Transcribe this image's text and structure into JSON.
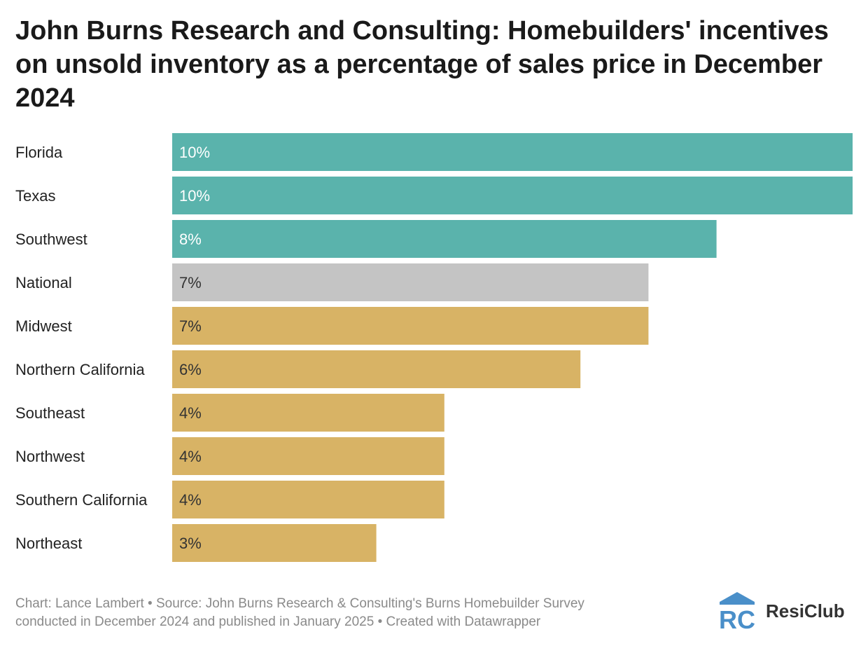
{
  "title": "John Burns Research and Consulting: Homebuilders' incentives on unsold inventory as a percentage of sales price in December 2024",
  "footer": {
    "line1": "Chart: Lance Lambert • Source: John Burns Research & Consulting's Burns Homebuilder Survey",
    "line2": "conducted in December 2024 and published in January 2025 • Created with Datawrapper"
  },
  "brand": {
    "name": "ResiClub",
    "mark": "RC"
  },
  "colors": {
    "teal": "#5ab3ac",
    "gray": "#c4c4c4",
    "gold": "#d8b365",
    "brand_blue": "#4a8fc9"
  },
  "chart_data": {
    "type": "bar",
    "orientation": "horizontal",
    "categories": [
      "Florida",
      "Texas",
      "Southwest",
      "National",
      "Midwest",
      "Northern California",
      "Southeast",
      "Northwest",
      "Southern California",
      "Northeast"
    ],
    "values": [
      10,
      10,
      8,
      7,
      7,
      6,
      4,
      4,
      4,
      3
    ],
    "labels": [
      "10%",
      "10%",
      "8%",
      "7%",
      "7%",
      "6%",
      "4%",
      "4%",
      "4%",
      "3%"
    ],
    "bar_colors": [
      "#5ab3ac",
      "#5ab3ac",
      "#5ab3ac",
      "#c4c4c4",
      "#d8b365",
      "#d8b365",
      "#d8b365",
      "#d8b365",
      "#d8b365",
      "#d8b365"
    ],
    "label_colors": [
      "#ffffff",
      "#ffffff",
      "#ffffff",
      "#333333",
      "#333333",
      "#333333",
      "#333333",
      "#333333",
      "#333333",
      "#333333"
    ],
    "unit": "%",
    "xlim": [
      0,
      10
    ],
    "grid": false,
    "legend": "none"
  }
}
